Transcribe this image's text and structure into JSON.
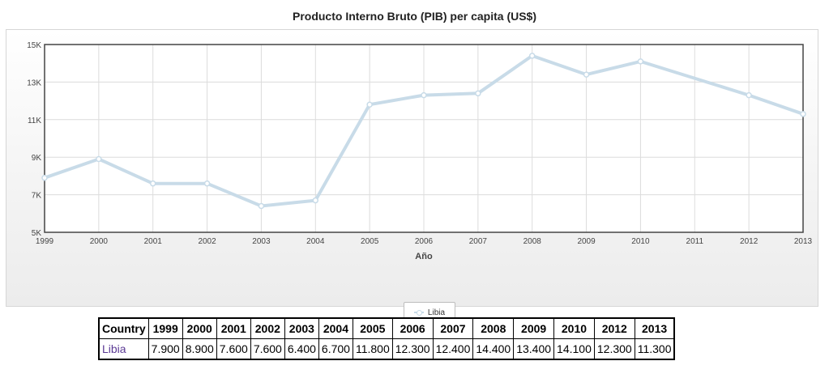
{
  "chart_data": {
    "type": "line",
    "title": "Producto Interno Bruto (PIB) per capita (US$)",
    "xlabel": "Año",
    "ylabel": "",
    "x": [
      1999,
      2000,
      2001,
      2002,
      2003,
      2004,
      2005,
      2006,
      2007,
      2008,
      2009,
      2010,
      2011,
      2012,
      2013
    ],
    "series": [
      {
        "name": "Libia",
        "values": [
          7900,
          8900,
          7600,
          7600,
          6400,
          6700,
          11800,
          12300,
          12400,
          14400,
          13400,
          14100,
          null,
          12300,
          11300
        ]
      }
    ],
    "ylim": [
      5000,
      15000
    ],
    "yticks": [
      5000,
      7000,
      9000,
      11000,
      13000,
      15000
    ],
    "ytick_labels": [
      "5K",
      "7K",
      "9K",
      "11K",
      "13K",
      "15K"
    ],
    "grid": true,
    "legend_position": "bottom-center",
    "line_color": "#c8dbe8",
    "connect_gaps": true
  },
  "table": {
    "header_country": "Country",
    "years": [
      "1999",
      "2000",
      "2001",
      "2002",
      "2003",
      "2004",
      "2005",
      "2006",
      "2007",
      "2008",
      "2009",
      "2010",
      "2012",
      "2013"
    ],
    "rows": [
      {
        "country": "Libia",
        "values": [
          "7.900",
          "8.900",
          "7.600",
          "7.600",
          "6.400",
          "6.700",
          "11.800",
          "12.300",
          "12.400",
          "14.400",
          "13.400",
          "14.100",
          "12.300",
          "11.300"
        ]
      }
    ]
  }
}
